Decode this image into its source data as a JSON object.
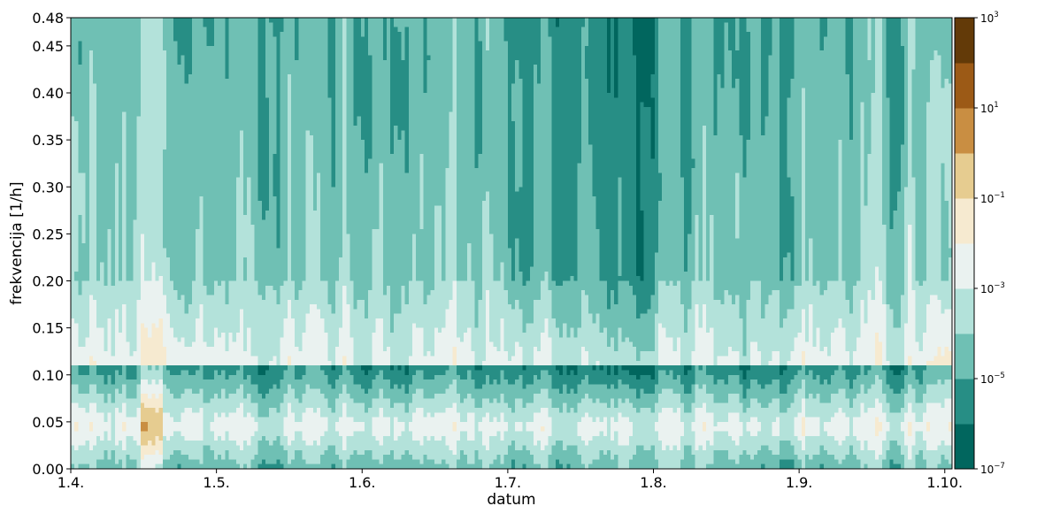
{
  "chart_data": {
    "type": "heatmap",
    "title": "",
    "xlabel": "datum",
    "ylabel": "frekvencija [1/h]",
    "x_ticks": [
      "1.4.",
      "1.5.",
      "1.6.",
      "1.7.",
      "1.8.",
      "1.9.",
      "1.10."
    ],
    "x_range": [
      "1.4.",
      "1.10."
    ],
    "y_ticks": [
      0.0,
      0.05,
      0.1,
      0.15,
      0.2,
      0.25,
      0.3,
      0.35,
      0.4,
      0.45,
      0.48
    ],
    "y_tick_labels": [
      "0.00",
      "0.05",
      "0.10",
      "0.15",
      "0.20",
      "0.25",
      "0.30",
      "0.35",
      "0.40",
      "0.45",
      "0.48"
    ],
    "ylim": [
      0,
      0.48
    ],
    "colorbar": {
      "scale": "log",
      "range": [
        1e-07,
        1000.0
      ],
      "tick_labels": [
        {
          "base": "10",
          "exp": "3"
        },
        {
          "base": "10",
          "exp": "1"
        },
        {
          "base": "10",
          "exp": "−1"
        },
        {
          "base": "10",
          "exp": "−3"
        },
        {
          "base": "10",
          "exp": "−5"
        },
        {
          "base": "10",
          "exp": "−7"
        }
      ],
      "levels": [
        {
          "lo": "1e-7",
          "hi": "1e-6",
          "color": "#01665e"
        },
        {
          "lo": "1e-6",
          "hi": "1e-5",
          "color": "#278e85"
        },
        {
          "lo": "1e-5",
          "hi": "1e-4",
          "color": "#6fc0b4"
        },
        {
          "lo": "1e-4",
          "hi": "1e-3",
          "color": "#b3e2da"
        },
        {
          "lo": "1e-3",
          "hi": "1e-2",
          "color": "#eaf2f0"
        },
        {
          "lo": "1e-2",
          "hi": "1e-1",
          "color": "#f6ead0"
        },
        {
          "lo": "1e-1",
          "hi": "1e0",
          "color": "#e6cc90"
        },
        {
          "lo": "1e0",
          "hi": "1e1",
          "color": "#c98e42"
        },
        {
          "lo": "1e1",
          "hi": "1e2",
          "color": "#9c5a16"
        },
        {
          "lo": "1e2",
          "hi": "1e3",
          "color": "#633a08"
        }
      ]
    },
    "grid": false,
    "legend": "colorbar-right"
  }
}
